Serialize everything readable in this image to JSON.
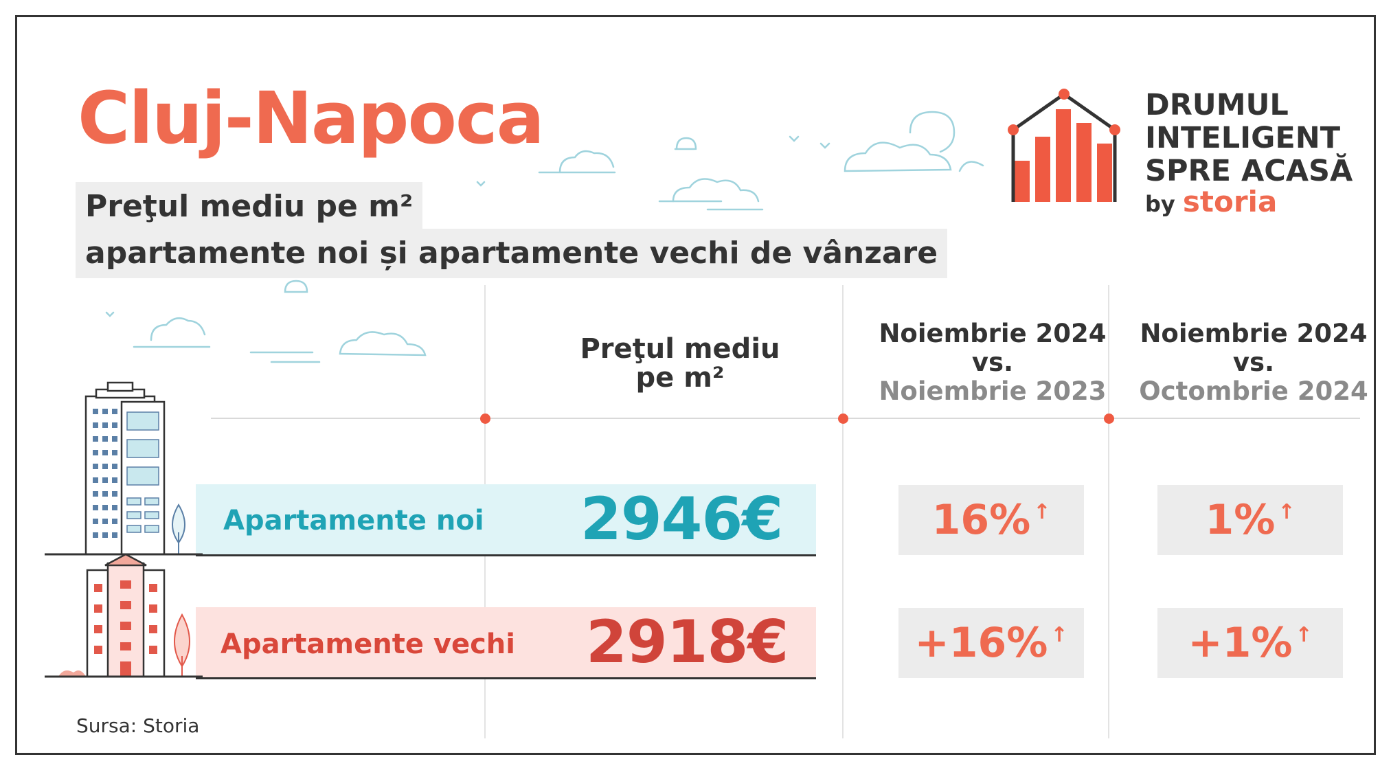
{
  "title": "Cluj-Napoca",
  "subtitle_line1": "Preţul mediu pe m²",
  "subtitle_line2": "apartamente noi și apartamente vechi de vânzare",
  "logo": {
    "line1": "DRUMUL",
    "line2": "INTELIGENT",
    "line3": "SPRE ACASĂ",
    "by": "by",
    "brand": "storia"
  },
  "columns": {
    "price_line1": "Preţul mediu",
    "price_line2": "pe m²",
    "yoy_line1": "Noiembrie 2024",
    "yoy_line2": "vs.",
    "yoy_line3": "Noiembrie 2023",
    "mom_line1": "Noiembrie 2024",
    "mom_line2": "vs.",
    "mom_line3": "Octombrie 2024"
  },
  "rows": [
    {
      "label": "Apartamente noi",
      "price": "2946€",
      "yoy": "16%",
      "mom": "1%"
    },
    {
      "label": "Apartamente vechi",
      "price": "2918€",
      "yoy": "+16%",
      "mom": "+1%"
    }
  ],
  "arrow_glyph": "↑",
  "source": "Sursa: Storia",
  "colors": {
    "accent": "#ef6a50",
    "new_apartments": "#1fa3b5",
    "old_apartments": "#d0443a",
    "text": "#333333"
  }
}
